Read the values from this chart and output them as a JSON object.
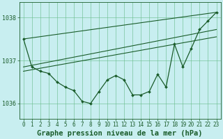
{
  "title": "Graphe pression niveau de la mer (hPa)",
  "background_color": "#c8eef0",
  "plot_bg_color": "#c8eef0",
  "grid_color": "#66bb88",
  "line_color": "#1a5c2a",
  "marker_color": "#1a5c2a",
  "xlim": [
    -0.5,
    23.5
  ],
  "ylim": [
    1035.65,
    1038.35
  ],
  "yticks": [
    1036,
    1037,
    1038
  ],
  "xticks": [
    0,
    1,
    2,
    3,
    4,
    5,
    6,
    7,
    8,
    9,
    10,
    11,
    12,
    13,
    14,
    15,
    16,
    17,
    18,
    19,
    20,
    21,
    22,
    23
  ],
  "hours": [
    0,
    1,
    2,
    3,
    4,
    5,
    6,
    7,
    8,
    9,
    10,
    11,
    12,
    13,
    14,
    15,
    16,
    17,
    18,
    19,
    20,
    21,
    22,
    23
  ],
  "pressure_main": [
    1037.5,
    1036.85,
    1036.75,
    1036.7,
    1036.5,
    1036.38,
    1036.3,
    1036.05,
    1036.0,
    1036.28,
    1036.55,
    1036.65,
    1036.55,
    1036.2,
    1036.2,
    1036.28,
    1036.68,
    1036.38,
    1037.38,
    1036.85,
    1037.28,
    1037.72,
    1037.92,
    1038.12
  ],
  "straight_lines": [
    {
      "x0": 0,
      "y0": 1037.5,
      "x1": 23,
      "y1": 1038.12
    },
    {
      "x0": 0,
      "y0": 1036.85,
      "x1": 23,
      "y1": 1037.72
    },
    {
      "x0": 0,
      "y0": 1036.75,
      "x1": 23,
      "y1": 1037.55
    }
  ],
  "title_fontsize": 7.5,
  "tick_fontsize": 5.5,
  "tick_color": "#1a5c2a",
  "ylabel_fontsize": 7
}
